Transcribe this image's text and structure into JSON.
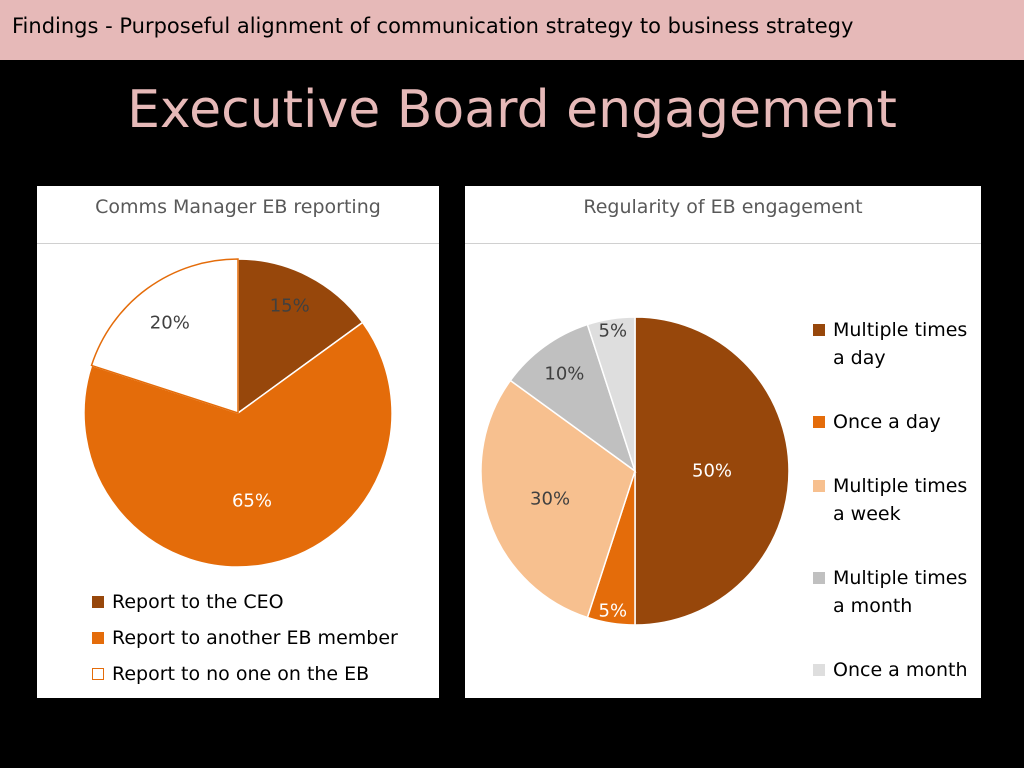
{
  "header": {
    "banner": "Findings - Purposeful alignment of communication strategy to business strategy"
  },
  "slide": {
    "title": "Executive Board engagement"
  },
  "colors": {
    "dark_brown": "#97470b",
    "orange": "#e46c0a",
    "white": "#ffffff",
    "peach": "#f7c08f",
    "gray": "#c0c0c0",
    "light_gray": "#dedede",
    "title_pink": "#e6b9b8"
  },
  "chart_data": [
    {
      "type": "pie",
      "title": "Comms Manager EB reporting",
      "categories": [
        "Report to the CEO",
        "Report to another EB member",
        "Report to no one on the EB"
      ],
      "values": [
        15,
        65,
        20
      ],
      "labels": [
        "15%",
        "65%",
        "20%"
      ],
      "colors": [
        "#97470b",
        "#e46c0a",
        "#ffffff"
      ],
      "legend_position": "bottom"
    },
    {
      "type": "pie",
      "title": "Regularity of EB engagement",
      "categories": [
        "Multiple times a day",
        "Once a day",
        "Multiple times a week",
        "Multiple times a month",
        "Once a month"
      ],
      "values": [
        50,
        5,
        30,
        10,
        5
      ],
      "labels": [
        "50%",
        "5%",
        "30%",
        "10%",
        "5%"
      ],
      "colors": [
        "#97470b",
        "#e46c0a",
        "#f7c08f",
        "#c0c0c0",
        "#dedede"
      ],
      "legend_position": "right"
    }
  ]
}
